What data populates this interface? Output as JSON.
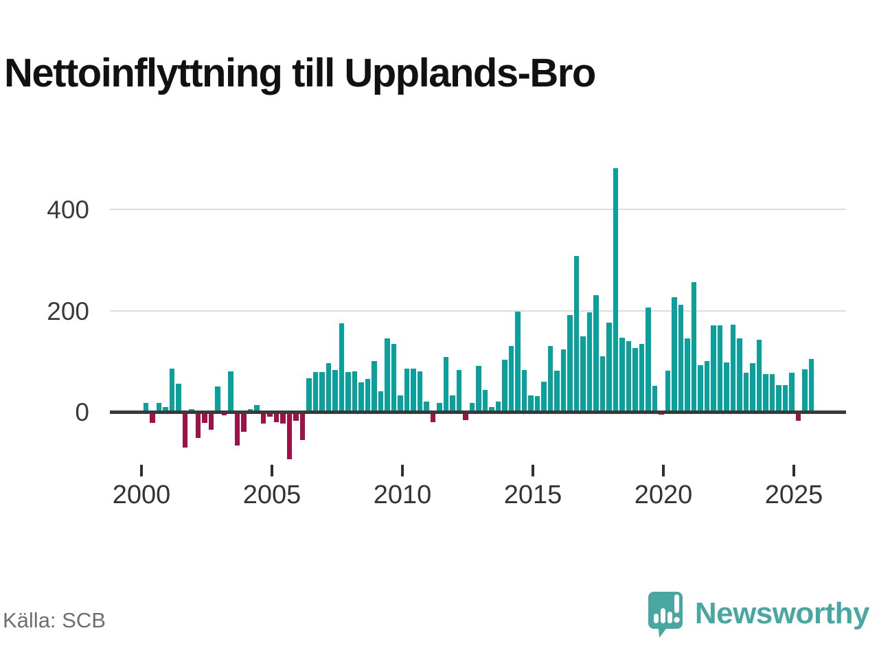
{
  "title": "Nettoinflyttning till Upplands-Bro",
  "source": "Källa: SCB",
  "brand": {
    "name": "Newsworthy",
    "color": "#4aa6a0"
  },
  "colors": {
    "positive_bar": "#0aa09b",
    "negative_bar": "#9f1147",
    "axis_line": "#3a3a3a",
    "gridline": "#dcdcdc",
    "title_text": "#111111",
    "tick_text": "#333333",
    "source_text": "#6e6e6e"
  },
  "chart_data": {
    "type": "bar",
    "frequency": "quarterly",
    "title": "Nettoinflyttning till Upplands-Bro",
    "xlabel": "",
    "ylabel": "",
    "ylim": [
      -120,
      510
    ],
    "grid": "horizontal-y",
    "legend_position": "none",
    "yticks": [
      0,
      200,
      400
    ],
    "xticks": [
      "2000",
      "2005",
      "2010",
      "2015",
      "2020",
      "2025"
    ],
    "x": [
      "2000Q1",
      "2000Q2",
      "2000Q3",
      "2000Q4",
      "2001Q1",
      "2001Q2",
      "2001Q3",
      "2001Q4",
      "2002Q1",
      "2002Q2",
      "2002Q3",
      "2002Q4",
      "2003Q1",
      "2003Q2",
      "2003Q3",
      "2003Q4",
      "2004Q1",
      "2004Q2",
      "2004Q3",
      "2004Q4",
      "2005Q1",
      "2005Q2",
      "2005Q3",
      "2005Q4",
      "2006Q1",
      "2006Q2",
      "2006Q3",
      "2006Q4",
      "2007Q1",
      "2007Q2",
      "2007Q3",
      "2007Q4",
      "2008Q1",
      "2008Q2",
      "2008Q3",
      "2008Q4",
      "2009Q1",
      "2009Q2",
      "2009Q3",
      "2009Q4",
      "2010Q1",
      "2010Q2",
      "2010Q3",
      "2010Q4",
      "2011Q1",
      "2011Q2",
      "2011Q3",
      "2011Q4",
      "2012Q1",
      "2012Q2",
      "2012Q3",
      "2012Q4",
      "2013Q1",
      "2013Q2",
      "2013Q3",
      "2013Q4",
      "2014Q1",
      "2014Q2",
      "2014Q3",
      "2014Q4",
      "2015Q1",
      "2015Q2",
      "2015Q3",
      "2015Q4",
      "2016Q1",
      "2016Q2",
      "2016Q3",
      "2016Q4",
      "2017Q1",
      "2017Q2",
      "2017Q3",
      "2017Q4",
      "2018Q1",
      "2018Q2",
      "2018Q3",
      "2018Q4",
      "2019Q1",
      "2019Q2",
      "2019Q3",
      "2019Q4",
      "2020Q1",
      "2020Q2",
      "2020Q3",
      "2020Q4",
      "2021Q1",
      "2021Q2",
      "2021Q3",
      "2021Q4",
      "2022Q1",
      "2022Q2",
      "2022Q3",
      "2022Q4",
      "2023Q1",
      "2023Q2",
      "2023Q3",
      "2023Q4",
      "2024Q1",
      "2024Q2",
      "2024Q3",
      "2024Q4",
      "2025Q1",
      "2025Q2",
      "2025Q3"
    ],
    "values": [
      17,
      -22,
      17,
      9,
      86,
      55,
      -71,
      5,
      -52,
      -22,
      -35,
      50,
      -7,
      80,
      -66,
      -39,
      5,
      13,
      -23,
      -10,
      -21,
      -23,
      -94,
      -17,
      -55,
      66,
      79,
      79,
      96,
      83,
      175,
      79,
      80,
      58,
      65,
      100,
      41,
      145,
      134,
      33,
      85,
      85,
      80,
      21,
      -20,
      18,
      109,
      33,
      83,
      -16,
      17,
      91,
      43,
      10,
      20,
      103,
      131,
      198,
      83,
      33,
      31,
      60,
      130,
      81,
      124,
      192,
      308,
      150,
      197,
      231,
      110,
      176,
      482,
      146,
      140,
      126,
      135,
      207,
      51,
      -5,
      82,
      227,
      212,
      145,
      257,
      92,
      100,
      171,
      171,
      98,
      172,
      145,
      78,
      96,
      142,
      75,
      75,
      53,
      53,
      77,
      -18,
      84,
      105
    ]
  }
}
